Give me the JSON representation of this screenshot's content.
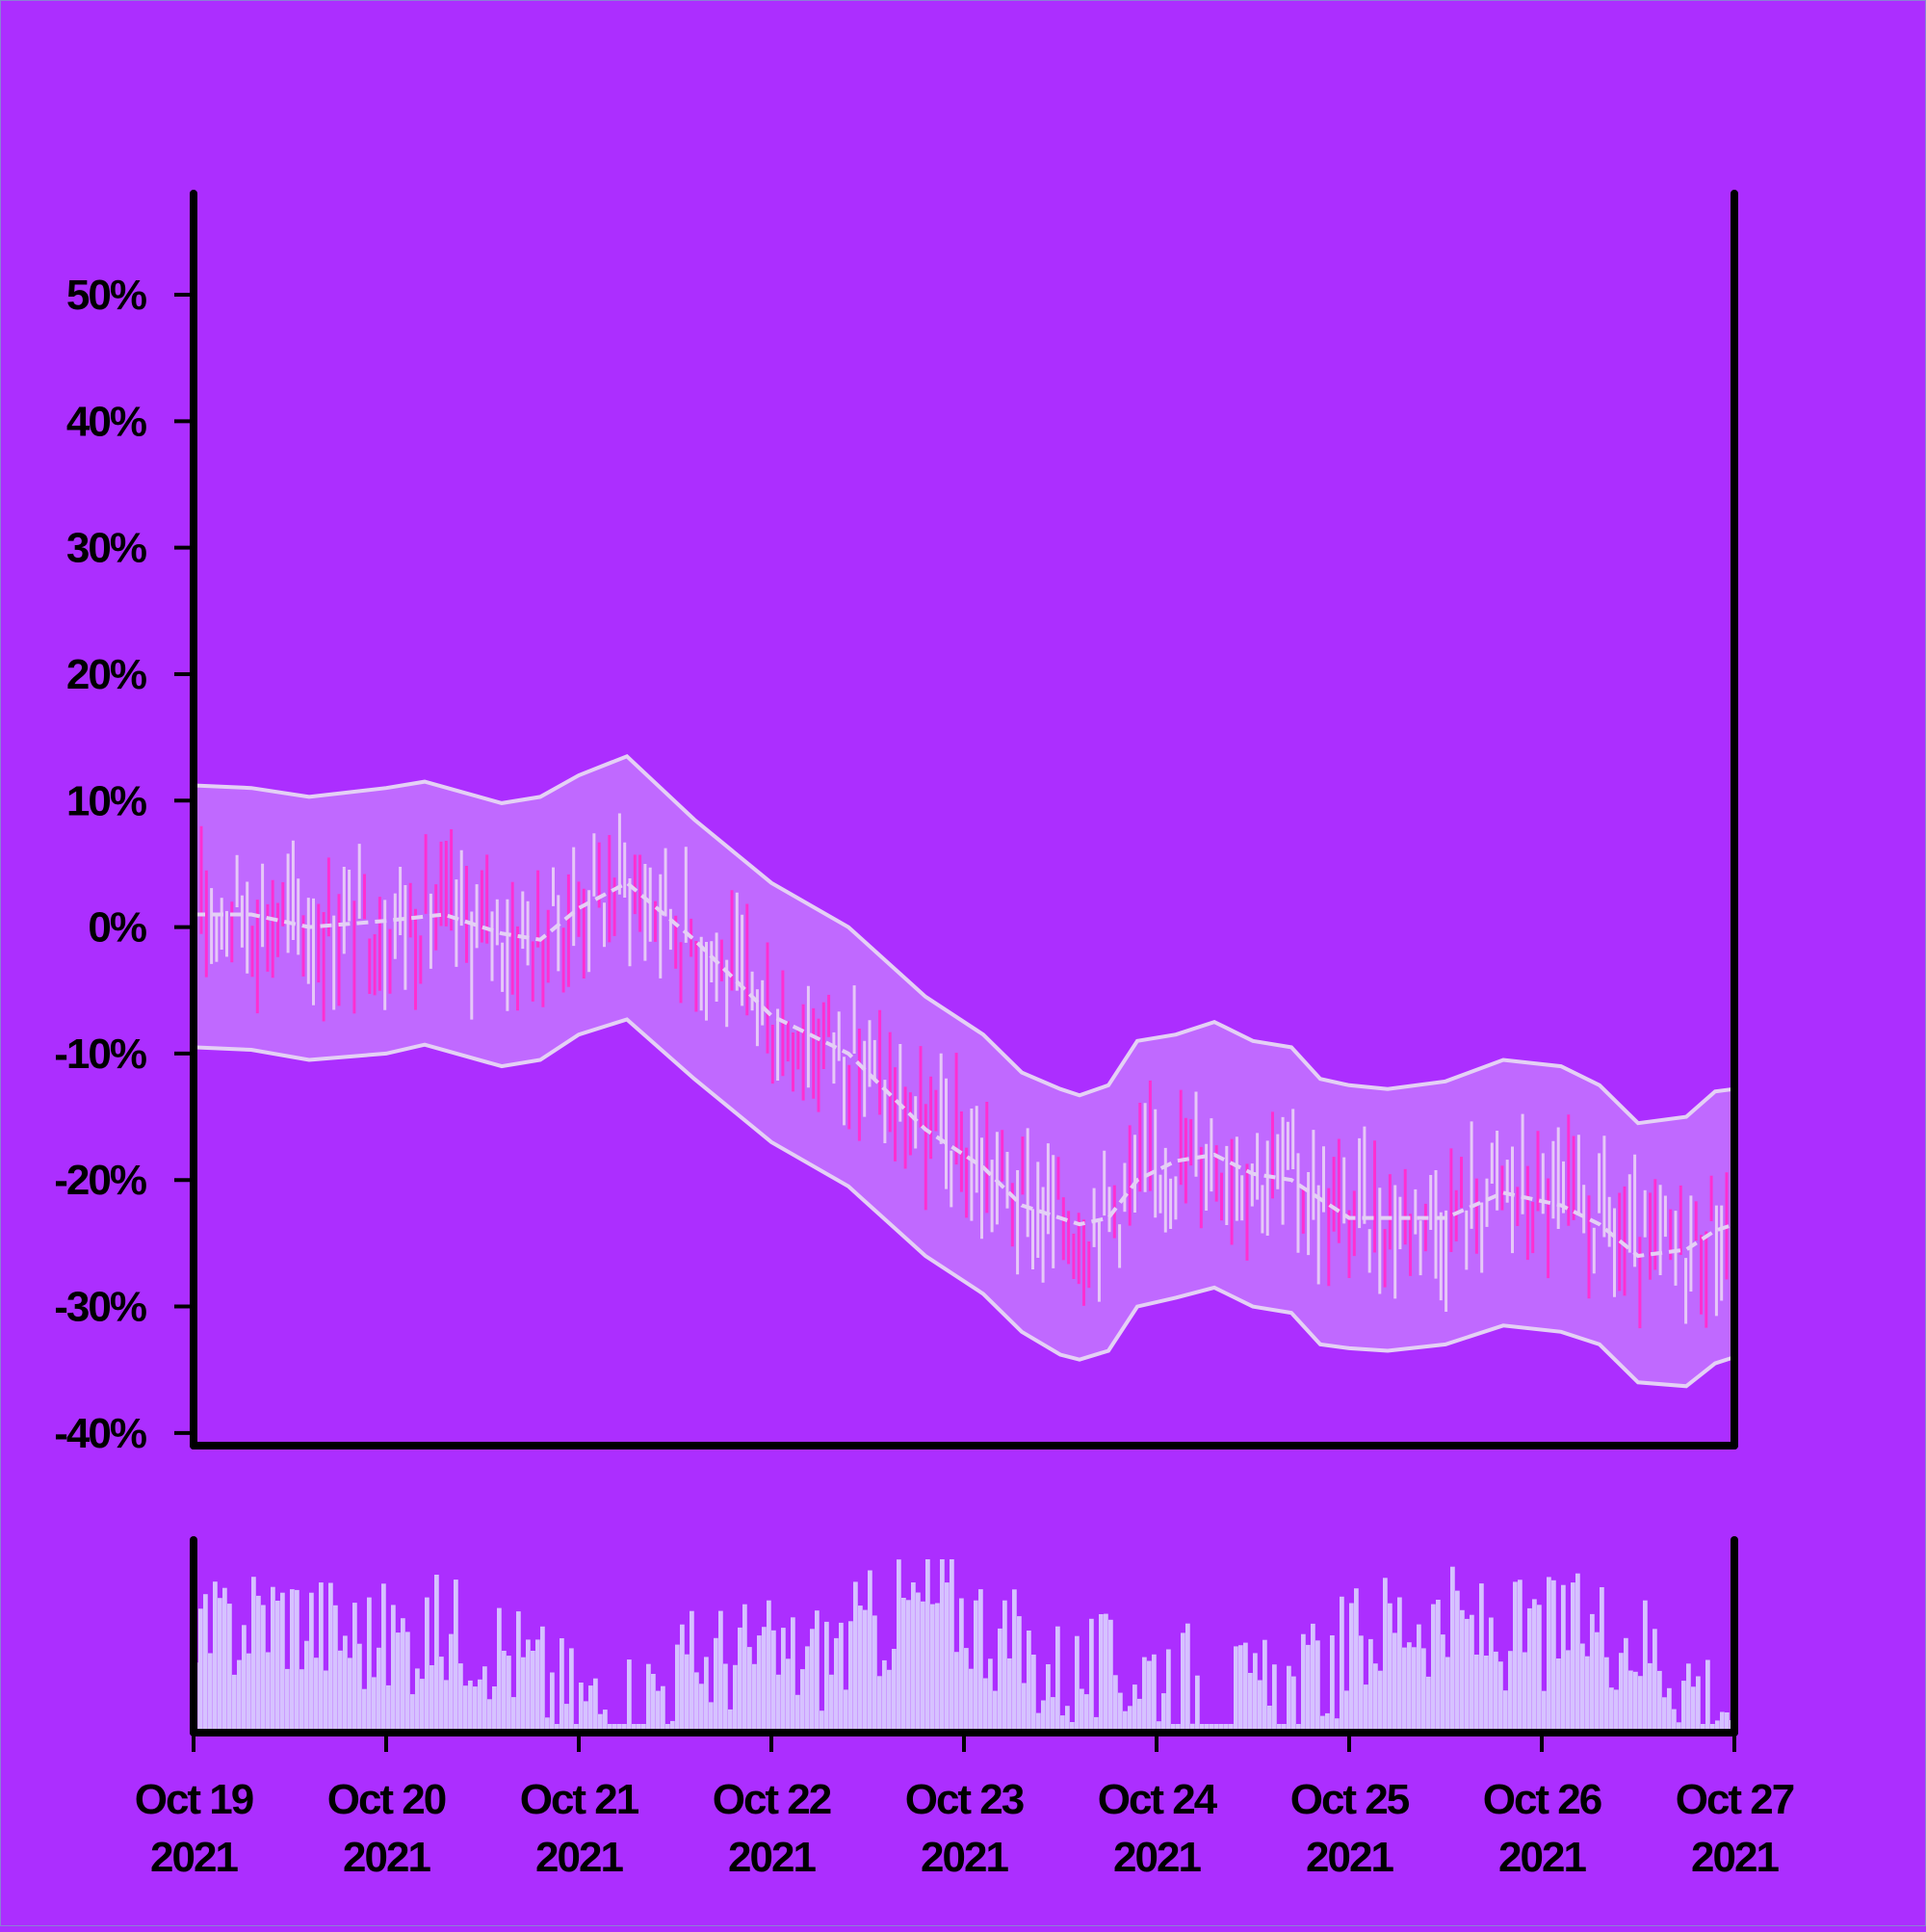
{
  "colors": {
    "background": "#ac2eff",
    "axis": "#000000",
    "band_fill": "#c77dff",
    "band_line": "#e4d0f5",
    "up_bar": "#e6c8f7",
    "down_bar": "#ff2fd2",
    "volume_bar": "#d6c2ff"
  },
  "chart_data": {
    "type": "ohlc",
    "y_tick_labels": [
      "50%",
      "40%",
      "30%",
      "20%",
      "10%",
      "0%",
      "-10%",
      "-20%",
      "-30%",
      "-40%"
    ],
    "y_ticks": [
      50,
      40,
      30,
      20,
      10,
      0,
      -10,
      -20,
      -30,
      -40
    ],
    "ylim": [
      -41,
      58
    ],
    "x_tick_labels": [
      {
        "month_day": "Oct 19",
        "year": "2021"
      },
      {
        "month_day": "Oct 20",
        "year": "2021"
      },
      {
        "month_day": "Oct 21",
        "year": "2021"
      },
      {
        "month_day": "Oct 22",
        "year": "2021"
      },
      {
        "month_day": "Oct 23",
        "year": "2021"
      },
      {
        "month_day": "Oct 24",
        "year": "2021"
      },
      {
        "month_day": "Oct 25",
        "year": "2021"
      },
      {
        "month_day": "Oct 26",
        "year": "2021"
      },
      {
        "month_day": "Oct 27",
        "year": "2021"
      }
    ],
    "xlim": [
      "2021-10-19",
      "2021-10-27"
    ],
    "moving_average": {
      "x_days": [
        0,
        0.3,
        0.6,
        1.0,
        1.3,
        1.6,
        1.8,
        2.0,
        2.25,
        2.6,
        3.0,
        3.4,
        3.8,
        4.1,
        4.3,
        4.5,
        4.6,
        4.75,
        4.9,
        5.1,
        5.3,
        5.5,
        5.7,
        5.85,
        6.0,
        6.2,
        6.5,
        6.8,
        7.1,
        7.3,
        7.5,
        7.75,
        7.9,
        8.0
      ],
      "values": [
        1.0,
        1.0,
        0.0,
        0.5,
        1.0,
        -0.5,
        -1.0,
        1.5,
        3.5,
        -1.0,
        -7.0,
        -10.0,
        -16.0,
        -19.0,
        -22.0,
        -23.0,
        -23.5,
        -23.0,
        -20.0,
        -18.5,
        -18.0,
        -19.5,
        -20.0,
        -21.5,
        -23.0,
        -23.0,
        -23.0,
        -21.0,
        -22.0,
        -23.5,
        -26.0,
        -25.5,
        -24.0,
        -23.5
      ]
    },
    "upper_band": {
      "x_days": [
        0,
        0.3,
        0.6,
        1.0,
        1.2,
        1.6,
        1.8,
        2.0,
        2.25,
        2.6,
        3.0,
        3.4,
        3.8,
        4.1,
        4.3,
        4.5,
        4.6,
        4.75,
        4.9,
        5.1,
        5.3,
        5.5,
        5.7,
        5.85,
        6.0,
        6.2,
        6.5,
        6.8,
        7.1,
        7.3,
        7.5,
        7.75,
        7.9,
        8.0
      ],
      "values": [
        11.2,
        11.0,
        10.3,
        11.0,
        11.5,
        9.8,
        10.3,
        12.0,
        13.5,
        8.5,
        3.5,
        0.0,
        -5.5,
        -8.5,
        -11.5,
        -12.8,
        -13.3,
        -12.5,
        -9.0,
        -8.5,
        -7.5,
        -9.0,
        -9.5,
        -12.0,
        -12.5,
        -12.8,
        -12.2,
        -10.5,
        -11.0,
        -12.5,
        -15.5,
        -15.0,
        -13.0,
        -12.8
      ]
    },
    "lower_band": {
      "x_days": [
        0,
        0.3,
        0.6,
        1.0,
        1.2,
        1.6,
        1.8,
        2.0,
        2.25,
        2.6,
        3.0,
        3.4,
        3.8,
        4.1,
        4.3,
        4.5,
        4.6,
        4.75,
        4.9,
        5.1,
        5.3,
        5.5,
        5.7,
        5.85,
        6.0,
        6.2,
        6.5,
        6.8,
        7.1,
        7.3,
        7.5,
        7.75,
        7.9,
        8.0
      ],
      "values": [
        -9.5,
        -9.7,
        -10.5,
        -10.0,
        -9.3,
        -11.0,
        -10.5,
        -8.5,
        -7.3,
        -12.0,
        -17.0,
        -20.5,
        -26.0,
        -29.0,
        -32.0,
        -33.8,
        -34.2,
        -33.5,
        -30.0,
        -29.3,
        -28.5,
        -30.0,
        -30.5,
        -33.0,
        -33.3,
        -33.5,
        -33.0,
        -31.5,
        -32.0,
        -33.0,
        -36.0,
        -36.3,
        -34.5,
        -34.0
      ]
    }
  }
}
